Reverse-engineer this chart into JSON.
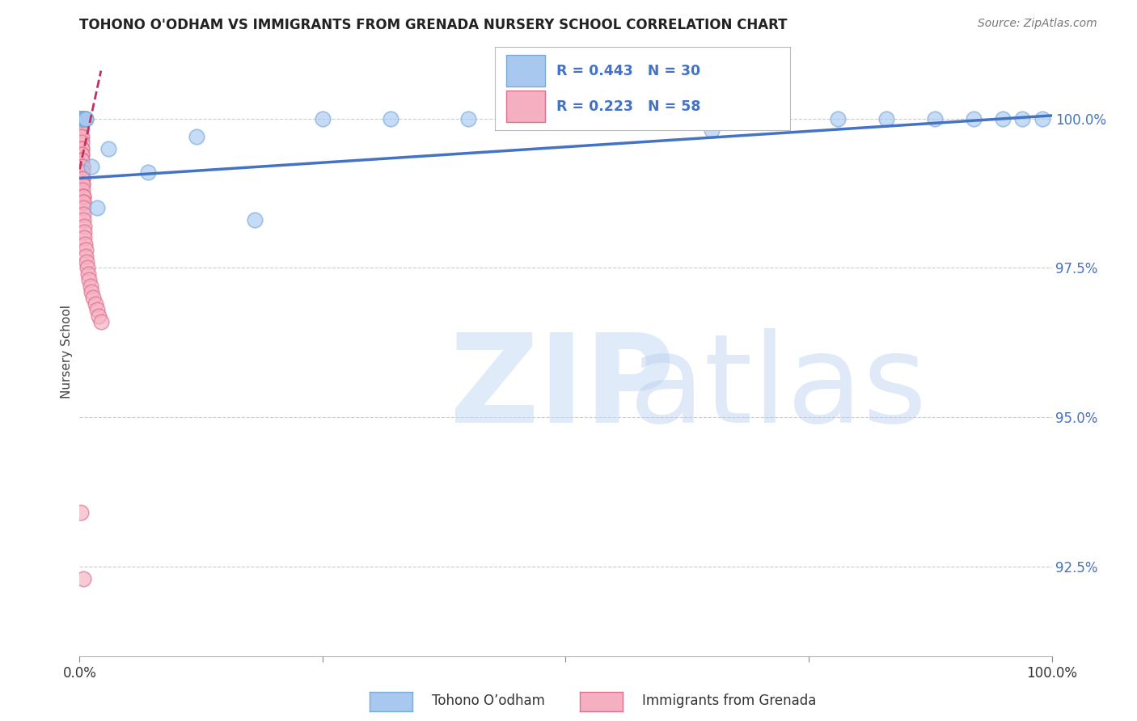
{
  "title": "TOHONO O'ODHAM VS IMMIGRANTS FROM GRENADA NURSERY SCHOOL CORRELATION CHART",
  "source": "Source: ZipAtlas.com",
  "ylabel": "Nursery School",
  "R_blue": 0.443,
  "N_blue": 30,
  "R_pink": 0.223,
  "N_pink": 58,
  "blue_color": "#A8C8F0",
  "blue_edge": "#7AAAD8",
  "pink_color": "#F4B0C0",
  "pink_edge": "#E07090",
  "trend_blue_color": "#4472C4",
  "trend_pink_color": "#C03060",
  "grid_color": "#CCCCCC",
  "ytick_color": "#4472C4",
  "xlim": [
    0.0,
    100.0
  ],
  "ylim": [
    91.0,
    101.2
  ],
  "yticks": [
    92.5,
    95.0,
    97.5,
    100.0
  ],
  "ytick_labels": [
    "92.5%",
    "95.0%",
    "97.5%",
    "100.0%"
  ],
  "legend_blue": "Tohono O’odham",
  "legend_pink": "Immigrants from Grenada",
  "blue_x": [
    0.1,
    0.2,
    0.3,
    0.35,
    0.4,
    0.45,
    0.5,
    0.55,
    0.6,
    0.65,
    1.2,
    1.8,
    3.0,
    7.0,
    12.0,
    18.0,
    25.0,
    32.0,
    40.0,
    50.0,
    58.0,
    65.0,
    72.0,
    78.0,
    83.0,
    88.0,
    92.0,
    95.0,
    97.0,
    99.0
  ],
  "blue_y": [
    100.0,
    100.0,
    100.0,
    100.0,
    100.0,
    100.0,
    100.0,
    100.0,
    100.0,
    100.0,
    99.2,
    98.5,
    99.5,
    99.1,
    99.7,
    98.3,
    100.0,
    100.0,
    100.0,
    100.0,
    100.0,
    99.8,
    100.0,
    100.0,
    100.0,
    100.0,
    100.0,
    100.0,
    100.0,
    100.0
  ],
  "pink_x": [
    0.02,
    0.03,
    0.04,
    0.05,
    0.06,
    0.07,
    0.08,
    0.09,
    0.1,
    0.11,
    0.12,
    0.13,
    0.14,
    0.15,
    0.16,
    0.17,
    0.18,
    0.19,
    0.2,
    0.21,
    0.22,
    0.23,
    0.24,
    0.25,
    0.26,
    0.27,
    0.28,
    0.29,
    0.3,
    0.31,
    0.32,
    0.33,
    0.34,
    0.35,
    0.36,
    0.37,
    0.38,
    0.4,
    0.42,
    0.45,
    0.48,
    0.5,
    0.55,
    0.6,
    0.65,
    0.7,
    0.8,
    0.9,
    1.0,
    1.1,
    1.2,
    1.4,
    1.6,
    1.8,
    2.0,
    2.2,
    0.1,
    0.4
  ],
  "pink_y": [
    100.0,
    100.0,
    100.0,
    100.0,
    100.0,
    100.0,
    100.0,
    100.0,
    100.0,
    100.0,
    100.0,
    100.0,
    99.9,
    99.8,
    99.8,
    99.7,
    99.7,
    99.6,
    99.5,
    99.5,
    99.4,
    99.4,
    99.3,
    99.3,
    99.2,
    99.2,
    99.1,
    99.0,
    99.0,
    98.9,
    98.9,
    98.8,
    98.7,
    98.7,
    98.6,
    98.6,
    98.5,
    98.4,
    98.3,
    98.2,
    98.1,
    98.0,
    97.9,
    97.8,
    97.7,
    97.6,
    97.5,
    97.4,
    97.3,
    97.2,
    97.1,
    97.0,
    96.9,
    96.8,
    96.7,
    96.6,
    93.4,
    92.3
  ],
  "blue_trend_x0": 0.0,
  "blue_trend_y0": 99.0,
  "blue_trend_x1": 100.0,
  "blue_trend_y1": 100.05,
  "pink_trend_x0": 0.0,
  "pink_trend_y0": 99.15,
  "pink_trend_x1": 2.2,
  "pink_trend_y1": 100.8
}
